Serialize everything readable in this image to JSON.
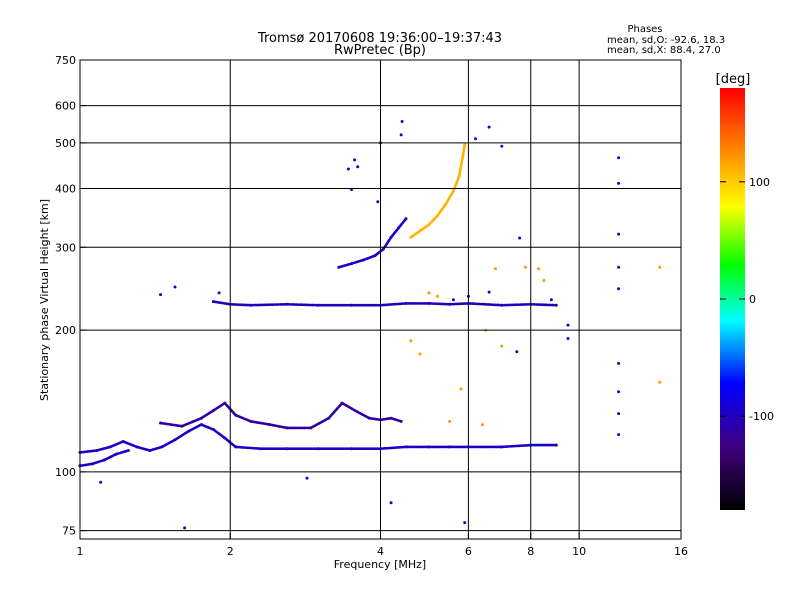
{
  "chart_data": {
    "type": "scatter",
    "title": "Tromsø 20170608 19:36:00–19:37:43",
    "subtitle": "RwPretec (Bp)",
    "xlabel": "Frequency [MHz]",
    "ylabel": "Stationary phase Virtual Height [km]",
    "x_scale": "log2",
    "y_scale": "log",
    "xlim": [
      1,
      16
    ],
    "ylim": [
      72,
      750
    ],
    "x_ticks": [
      "1",
      "2",
      "4",
      "6",
      "8",
      "10",
      "16"
    ],
    "x_tick_values": [
      1,
      2,
      4,
      6,
      8,
      10,
      16
    ],
    "y_ticks": [
      "75",
      "100",
      "200",
      "300",
      "400",
      "500",
      "600",
      "750"
    ],
    "y_tick_values": [
      75,
      100,
      200,
      300,
      400,
      500,
      600,
      750
    ],
    "grid": true,
    "stats": {
      "title": "Phases",
      "line_o": "mean, sd,O: -92.6, 18.3",
      "line_x": "mean, sd,X:  88.4, 27.0"
    },
    "colorbar": {
      "label": "[deg]",
      "range": [
        -180,
        180
      ],
      "ticks": [
        "100",
        "0",
        "-100"
      ],
      "tick_values": [
        100,
        0,
        -100
      ]
    },
    "series": [
      {
        "name": "E-region trace",
        "type": "line",
        "phase": -95,
        "points": [
          [
            1.0,
            110
          ],
          [
            1.08,
            111
          ],
          [
            1.15,
            113
          ],
          [
            1.22,
            116
          ],
          [
            1.3,
            113
          ],
          [
            1.38,
            111
          ],
          [
            1.46,
            113
          ],
          [
            1.55,
            117
          ],
          [
            1.65,
            122
          ],
          [
            1.75,
            126
          ],
          [
            1.85,
            123
          ],
          [
            1.95,
            118
          ],
          [
            2.05,
            113
          ],
          [
            2.3,
            112
          ],
          [
            2.6,
            112
          ],
          [
            3.0,
            112
          ],
          [
            3.5,
            112
          ],
          [
            4.0,
            112
          ],
          [
            4.5,
            113
          ],
          [
            5.0,
            113
          ],
          [
            5.5,
            113
          ],
          [
            6.0,
            113
          ],
          [
            7.0,
            113
          ],
          [
            8.0,
            114
          ],
          [
            9.0,
            114
          ]
        ]
      },
      {
        "name": "E-region lower edge",
        "type": "line",
        "phase": -95,
        "points": [
          [
            1.0,
            103
          ],
          [
            1.06,
            104
          ],
          [
            1.12,
            106
          ],
          [
            1.18,
            109
          ],
          [
            1.25,
            111
          ]
        ]
      },
      {
        "name": "E-region upper echoes",
        "type": "line",
        "phase": -110,
        "points": [
          [
            1.45,
            127
          ],
          [
            1.6,
            125
          ],
          [
            1.75,
            130
          ],
          [
            1.85,
            135
          ],
          [
            1.95,
            140
          ],
          [
            2.05,
            132
          ],
          [
            2.2,
            128
          ],
          [
            2.4,
            126
          ],
          [
            2.6,
            124
          ],
          [
            2.9,
            124
          ],
          [
            3.15,
            130
          ],
          [
            3.35,
            140
          ],
          [
            3.6,
            134
          ],
          [
            3.8,
            130
          ],
          [
            4.0,
            129
          ],
          [
            4.2,
            130
          ],
          [
            4.4,
            128
          ]
        ]
      },
      {
        "name": "F-layer trace",
        "type": "line",
        "phase": -100,
        "points": [
          [
            1.85,
            230
          ],
          [
            2.0,
            227
          ],
          [
            2.2,
            226
          ],
          [
            2.6,
            227
          ],
          [
            3.0,
            226
          ],
          [
            3.5,
            226
          ],
          [
            4.0,
            226
          ],
          [
            4.5,
            228
          ],
          [
            5.0,
            228
          ],
          [
            5.5,
            227
          ],
          [
            6.0,
            228
          ],
          [
            7.0,
            226
          ],
          [
            8.0,
            227
          ],
          [
            9.0,
            226
          ]
        ]
      },
      {
        "name": "F-layer cusp (O)",
        "type": "line",
        "phase": -95,
        "points": [
          [
            3.3,
            272
          ],
          [
            3.5,
            277
          ],
          [
            3.7,
            282
          ],
          [
            3.9,
            288
          ],
          [
            4.05,
            297
          ],
          [
            4.2,
            315
          ],
          [
            4.35,
            330
          ],
          [
            4.5,
            345
          ]
        ]
      },
      {
        "name": "F-layer X-mode",
        "type": "line",
        "phase": 110,
        "points": [
          [
            4.6,
            315
          ],
          [
            4.8,
            325
          ],
          [
            5.0,
            335
          ],
          [
            5.2,
            350
          ],
          [
            5.4,
            370
          ],
          [
            5.6,
            395
          ],
          [
            5.75,
            425
          ],
          [
            5.85,
            470
          ],
          [
            5.9,
            495
          ]
        ]
      },
      {
        "name": "Sporadic echoes",
        "type": "scatter",
        "phase": -90,
        "points": [
          [
            3.45,
            440
          ],
          [
            3.55,
            460
          ],
          [
            3.6,
            445
          ],
          [
            3.5,
            398
          ],
          [
            4.0,
            500
          ],
          [
            4.42,
            555
          ],
          [
            4.4,
            520
          ],
          [
            3.95,
            375
          ],
          [
            6.2,
            510
          ],
          [
            6.6,
            540
          ],
          [
            7.0,
            492
          ],
          [
            12.0,
            465
          ],
          [
            12.0,
            410
          ],
          [
            12.0,
            320
          ],
          [
            12.0,
            272
          ],
          [
            12.0,
            245
          ],
          [
            12.0,
            170
          ],
          [
            12.0,
            148
          ],
          [
            12.0,
            133
          ],
          [
            12.0,
            120
          ],
          [
            1.62,
            76
          ],
          [
            5.9,
            78
          ],
          [
            4.2,
            86
          ],
          [
            2.85,
            97
          ],
          [
            1.1,
            95
          ],
          [
            1.9,
            240
          ],
          [
            1.55,
            247
          ],
          [
            1.45,
            238
          ],
          [
            5.6,
            232
          ],
          [
            6.0,
            236
          ],
          [
            6.6,
            241
          ],
          [
            7.6,
            314
          ],
          [
            8.8,
            232
          ],
          [
            9.5,
            205
          ],
          [
            9.5,
            192
          ],
          [
            7.5,
            180
          ]
        ]
      },
      {
        "name": "Sporadic X echoes",
        "type": "scatter",
        "phase": 120,
        "points": [
          [
            5.2,
            236
          ],
          [
            5.0,
            240
          ],
          [
            6.8,
            270
          ],
          [
            7.8,
            272
          ],
          [
            8.3,
            270
          ],
          [
            8.5,
            255
          ],
          [
            14.5,
            272
          ],
          [
            14.5,
            155
          ],
          [
            7.0,
            185
          ],
          [
            6.5,
            200
          ],
          [
            5.8,
            150
          ],
          [
            4.8,
            178
          ],
          [
            4.6,
            190
          ],
          [
            6.4,
            126
          ],
          [
            5.5,
            128
          ]
        ]
      }
    ]
  }
}
